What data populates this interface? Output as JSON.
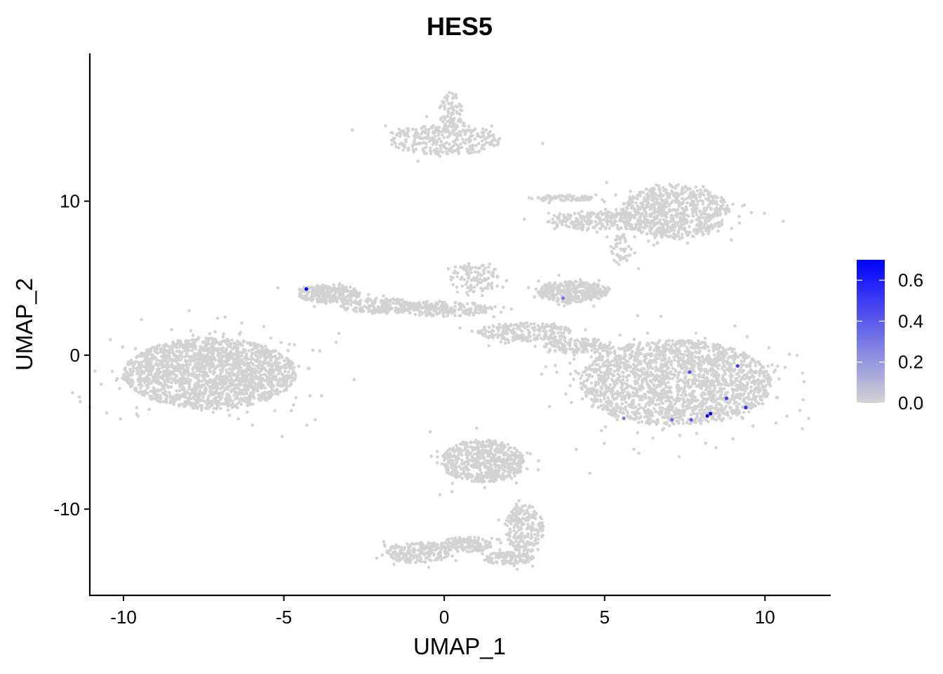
{
  "chart_data": {
    "type": "scatter",
    "title": "HES5",
    "xlabel": "UMAP_1",
    "ylabel": "UMAP_2",
    "xlim": [
      -11.05,
      12.05
    ],
    "ylim": [
      -15.6,
      19.6
    ],
    "x_ticks": [
      {
        "value": -10,
        "label": "-10"
      },
      {
        "value": -5,
        "label": "-5"
      },
      {
        "value": 0,
        "label": "0"
      },
      {
        "value": 5,
        "label": "5"
      },
      {
        "value": 10,
        "label": "10"
      }
    ],
    "y_ticks": [
      {
        "value": -10,
        "label": "-10"
      },
      {
        "value": 0,
        "label": "0"
      },
      {
        "value": 10,
        "label": "10"
      }
    ],
    "grid": false,
    "point_color": "#d3d3d3",
    "high_color": "#0000ff",
    "low_color": "#d3d3d3",
    "clusters": [
      {
        "cx": -7.3,
        "cy": -1.2,
        "rx": 2.7,
        "ry": 2.3,
        "n": 2000
      },
      {
        "cx": -3.6,
        "cy": 4.0,
        "rx": 1.0,
        "ry": 0.6,
        "n": 250
      },
      {
        "cx": -2.0,
        "cy": 3.2,
        "rx": 1.2,
        "ry": 0.5,
        "n": 180
      },
      {
        "cx": 0.0,
        "cy": 3.0,
        "rx": 1.5,
        "ry": 0.5,
        "n": 220
      },
      {
        "cx": 1.0,
        "cy": 5.0,
        "rx": 0.8,
        "ry": 1.0,
        "n": 120
      },
      {
        "cx": 2.5,
        "cy": 1.5,
        "rx": 1.5,
        "ry": 0.6,
        "n": 220
      },
      {
        "cx": 4.2,
        "cy": 0.6,
        "rx": 1.1,
        "ry": 0.5,
        "n": 150
      },
      {
        "cx": 7.2,
        "cy": -1.8,
        "rx": 3.0,
        "ry": 2.8,
        "n": 2000
      },
      {
        "cx": 0.0,
        "cy": 14.0,
        "rx": 1.8,
        "ry": 1.0,
        "n": 300
      },
      {
        "cx": 0.2,
        "cy": 15.8,
        "rx": 0.35,
        "ry": 1.3,
        "n": 90
      },
      {
        "cx": 7.2,
        "cy": 9.3,
        "rx": 1.7,
        "ry": 1.8,
        "n": 700
      },
      {
        "cx": 5.0,
        "cy": 8.7,
        "rx": 1.8,
        "ry": 0.6,
        "n": 250
      },
      {
        "cx": 3.7,
        "cy": 10.2,
        "rx": 1.0,
        "ry": 0.2,
        "n": 80
      },
      {
        "cx": 5.5,
        "cy": 6.8,
        "rx": 0.3,
        "ry": 1.0,
        "n": 50
      },
      {
        "cx": 4.0,
        "cy": 4.1,
        "rx": 1.1,
        "ry": 0.7,
        "n": 350
      },
      {
        "cx": 1.2,
        "cy": -6.9,
        "rx": 1.3,
        "ry": 1.4,
        "n": 600
      },
      {
        "cx": 2.5,
        "cy": -11.3,
        "rx": 0.6,
        "ry": 1.6,
        "n": 220
      },
      {
        "cx": -0.8,
        "cy": -12.8,
        "rx": 1.0,
        "ry": 0.7,
        "n": 220
      },
      {
        "cx": 0.7,
        "cy": -12.3,
        "rx": 0.8,
        "ry": 0.5,
        "n": 150
      },
      {
        "cx": 2.0,
        "cy": -13.2,
        "rx": 0.8,
        "ry": 0.4,
        "n": 120
      }
    ],
    "expressed_points": [
      {
        "x": -4.3,
        "y": 4.3,
        "value": 0.7
      },
      {
        "x": 8.3,
        "y": -3.8,
        "value": 0.7
      },
      {
        "x": 8.2,
        "y": -3.95,
        "value": 0.7
      },
      {
        "x": 9.15,
        "y": -0.7,
        "value": 0.5
      },
      {
        "x": 7.65,
        "y": -1.1,
        "value": 0.45
      },
      {
        "x": 8.8,
        "y": -2.8,
        "value": 0.5
      },
      {
        "x": 9.4,
        "y": -3.4,
        "value": 0.55
      },
      {
        "x": 5.6,
        "y": -4.1,
        "value": 0.3
      },
      {
        "x": 7.1,
        "y": -4.2,
        "value": 0.35
      },
      {
        "x": 7.7,
        "y": -4.2,
        "value": 0.4
      },
      {
        "x": 3.7,
        "y": 3.7,
        "value": 0.3
      }
    ],
    "legend": {
      "position": "right",
      "min": 0.0,
      "max": 0.7,
      "ticks": [
        {
          "value": 0.0,
          "label": "0.0"
        },
        {
          "value": 0.2,
          "label": "0.2"
        },
        {
          "value": 0.4,
          "label": "0.4"
        },
        {
          "value": 0.6,
          "label": "0.6"
        }
      ]
    }
  }
}
